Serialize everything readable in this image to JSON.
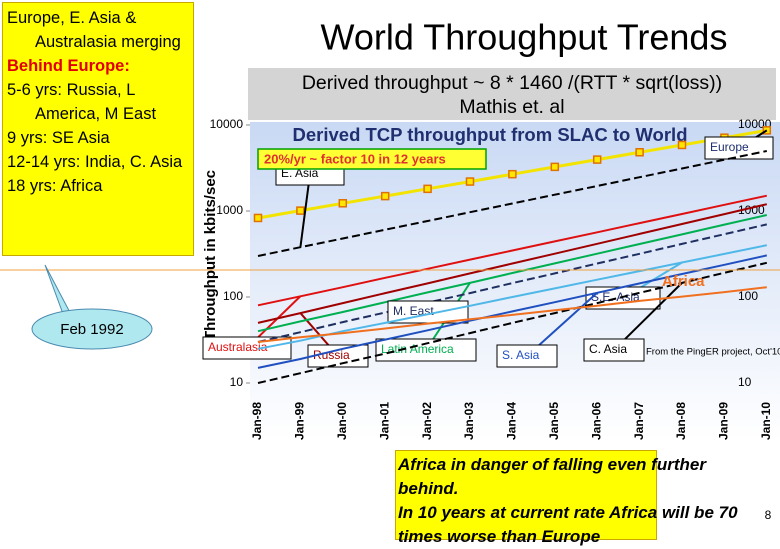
{
  "slide": {
    "title": "World Throughput Trends",
    "subtitle": [
      "Derived throughput ~ 8 * 1460 /(RTT * sqrt(loss))",
      "Mathis et. al"
    ],
    "left_box": {
      "lines": [
        "Europe, E. Asia & Australasia merging"
      ],
      "heading": "Behind Europe:",
      "items": [
        "5-6 yrs: Russia, L America, M East",
        "9 yrs: SE Asia",
        "12-14 yrs: India, C. Asia",
        "18 yrs: Africa"
      ]
    },
    "callout": "Feb 1992",
    "bottom_text": [
      "Africa in danger of falling even further behind.",
      "In 10 years at current rate Africa will be 70 times worse than Europe"
    ],
    "page_number": "8"
  },
  "chart_data": {
    "type": "line",
    "title": "Derived TCP throughput from SLAC to World",
    "y_label": "Throughput in kbits/sec",
    "annotations": [
      "20%/yr ~ factor 10 in 12 years",
      "From the PingER project, Oct'10"
    ],
    "categories": [
      "Jan-98",
      "Jan-99",
      "Jan-00",
      "Jan-01",
      "Jan-02",
      "Jan-03",
      "Jan-04",
      "Jan-05",
      "Jan-06",
      "Jan-07",
      "Jan-08",
      "Jan-09",
      "Jan-10"
    ],
    "ylim": [
      10,
      10000
    ],
    "yticks": [
      10,
      100,
      1000,
      10000
    ],
    "log_scale": true,
    "right_axis_labels": true,
    "series": [
      {
        "name": "Europe",
        "color": "#f2e400",
        "marker_color": "#e07000",
        "markers": true,
        "values": [
          830,
          1010,
          1230,
          1490,
          1810,
          2200,
          2680,
          3260,
          3960,
          4820,
          5860,
          7120,
          8660
        ]
      },
      {
        "name": "E. Asia",
        "color": "#000000",
        "dashed": true,
        "values": [
          300,
          379,
          479,
          606,
          766,
          968,
          1224,
          1547,
          1955,
          2471,
          3124,
          3948,
          4990
        ]
      },
      {
        "name": "Australasia",
        "color": "#e01010",
        "values": [
          80,
          102,
          130,
          167,
          213,
          272,
          347,
          443,
          566,
          723,
          923,
          1179,
          1506
        ]
      },
      {
        "name": "Russia",
        "color": "#a00000",
        "values": [
          50,
          65,
          85,
          111,
          144,
          188,
          245,
          319,
          416,
          542,
          706,
          920,
          1199
        ]
      },
      {
        "name": "Latin America",
        "color": "#00b050",
        "values": [
          40,
          52,
          67,
          87,
          113,
          146,
          190,
          246,
          319,
          413,
          535,
          694,
          899
        ]
      },
      {
        "name": "M. East",
        "color": "#1f2f60",
        "dashed": true,
        "values": [
          30,
          39,
          51,
          66,
          86,
          111,
          145,
          188,
          245,
          318,
          414,
          538,
          699
        ]
      },
      {
        "name": "S.E. Asia",
        "color": "#4fb8e8",
        "values": [
          25,
          31,
          40,
          50,
          63,
          79,
          100,
          126,
          159,
          200,
          252,
          317,
          400
        ]
      },
      {
        "name": "S. Asia",
        "color": "#2050c0",
        "values": [
          15,
          19,
          25,
          32,
          41,
          53,
          68,
          87,
          112,
          144,
          185,
          237,
          305
        ]
      },
      {
        "name": "C. Asia",
        "color": "#000000",
        "dashed": true,
        "values": [
          10,
          13,
          17,
          22,
          29,
          38,
          50,
          65,
          85,
          112,
          146,
          191,
          250
        ]
      },
      {
        "name": "Africa",
        "color": "#f07020",
        "values": [
          30,
          34,
          38,
          43,
          49,
          55,
          62,
          70,
          79,
          90,
          101,
          114,
          130
        ]
      }
    ]
  }
}
